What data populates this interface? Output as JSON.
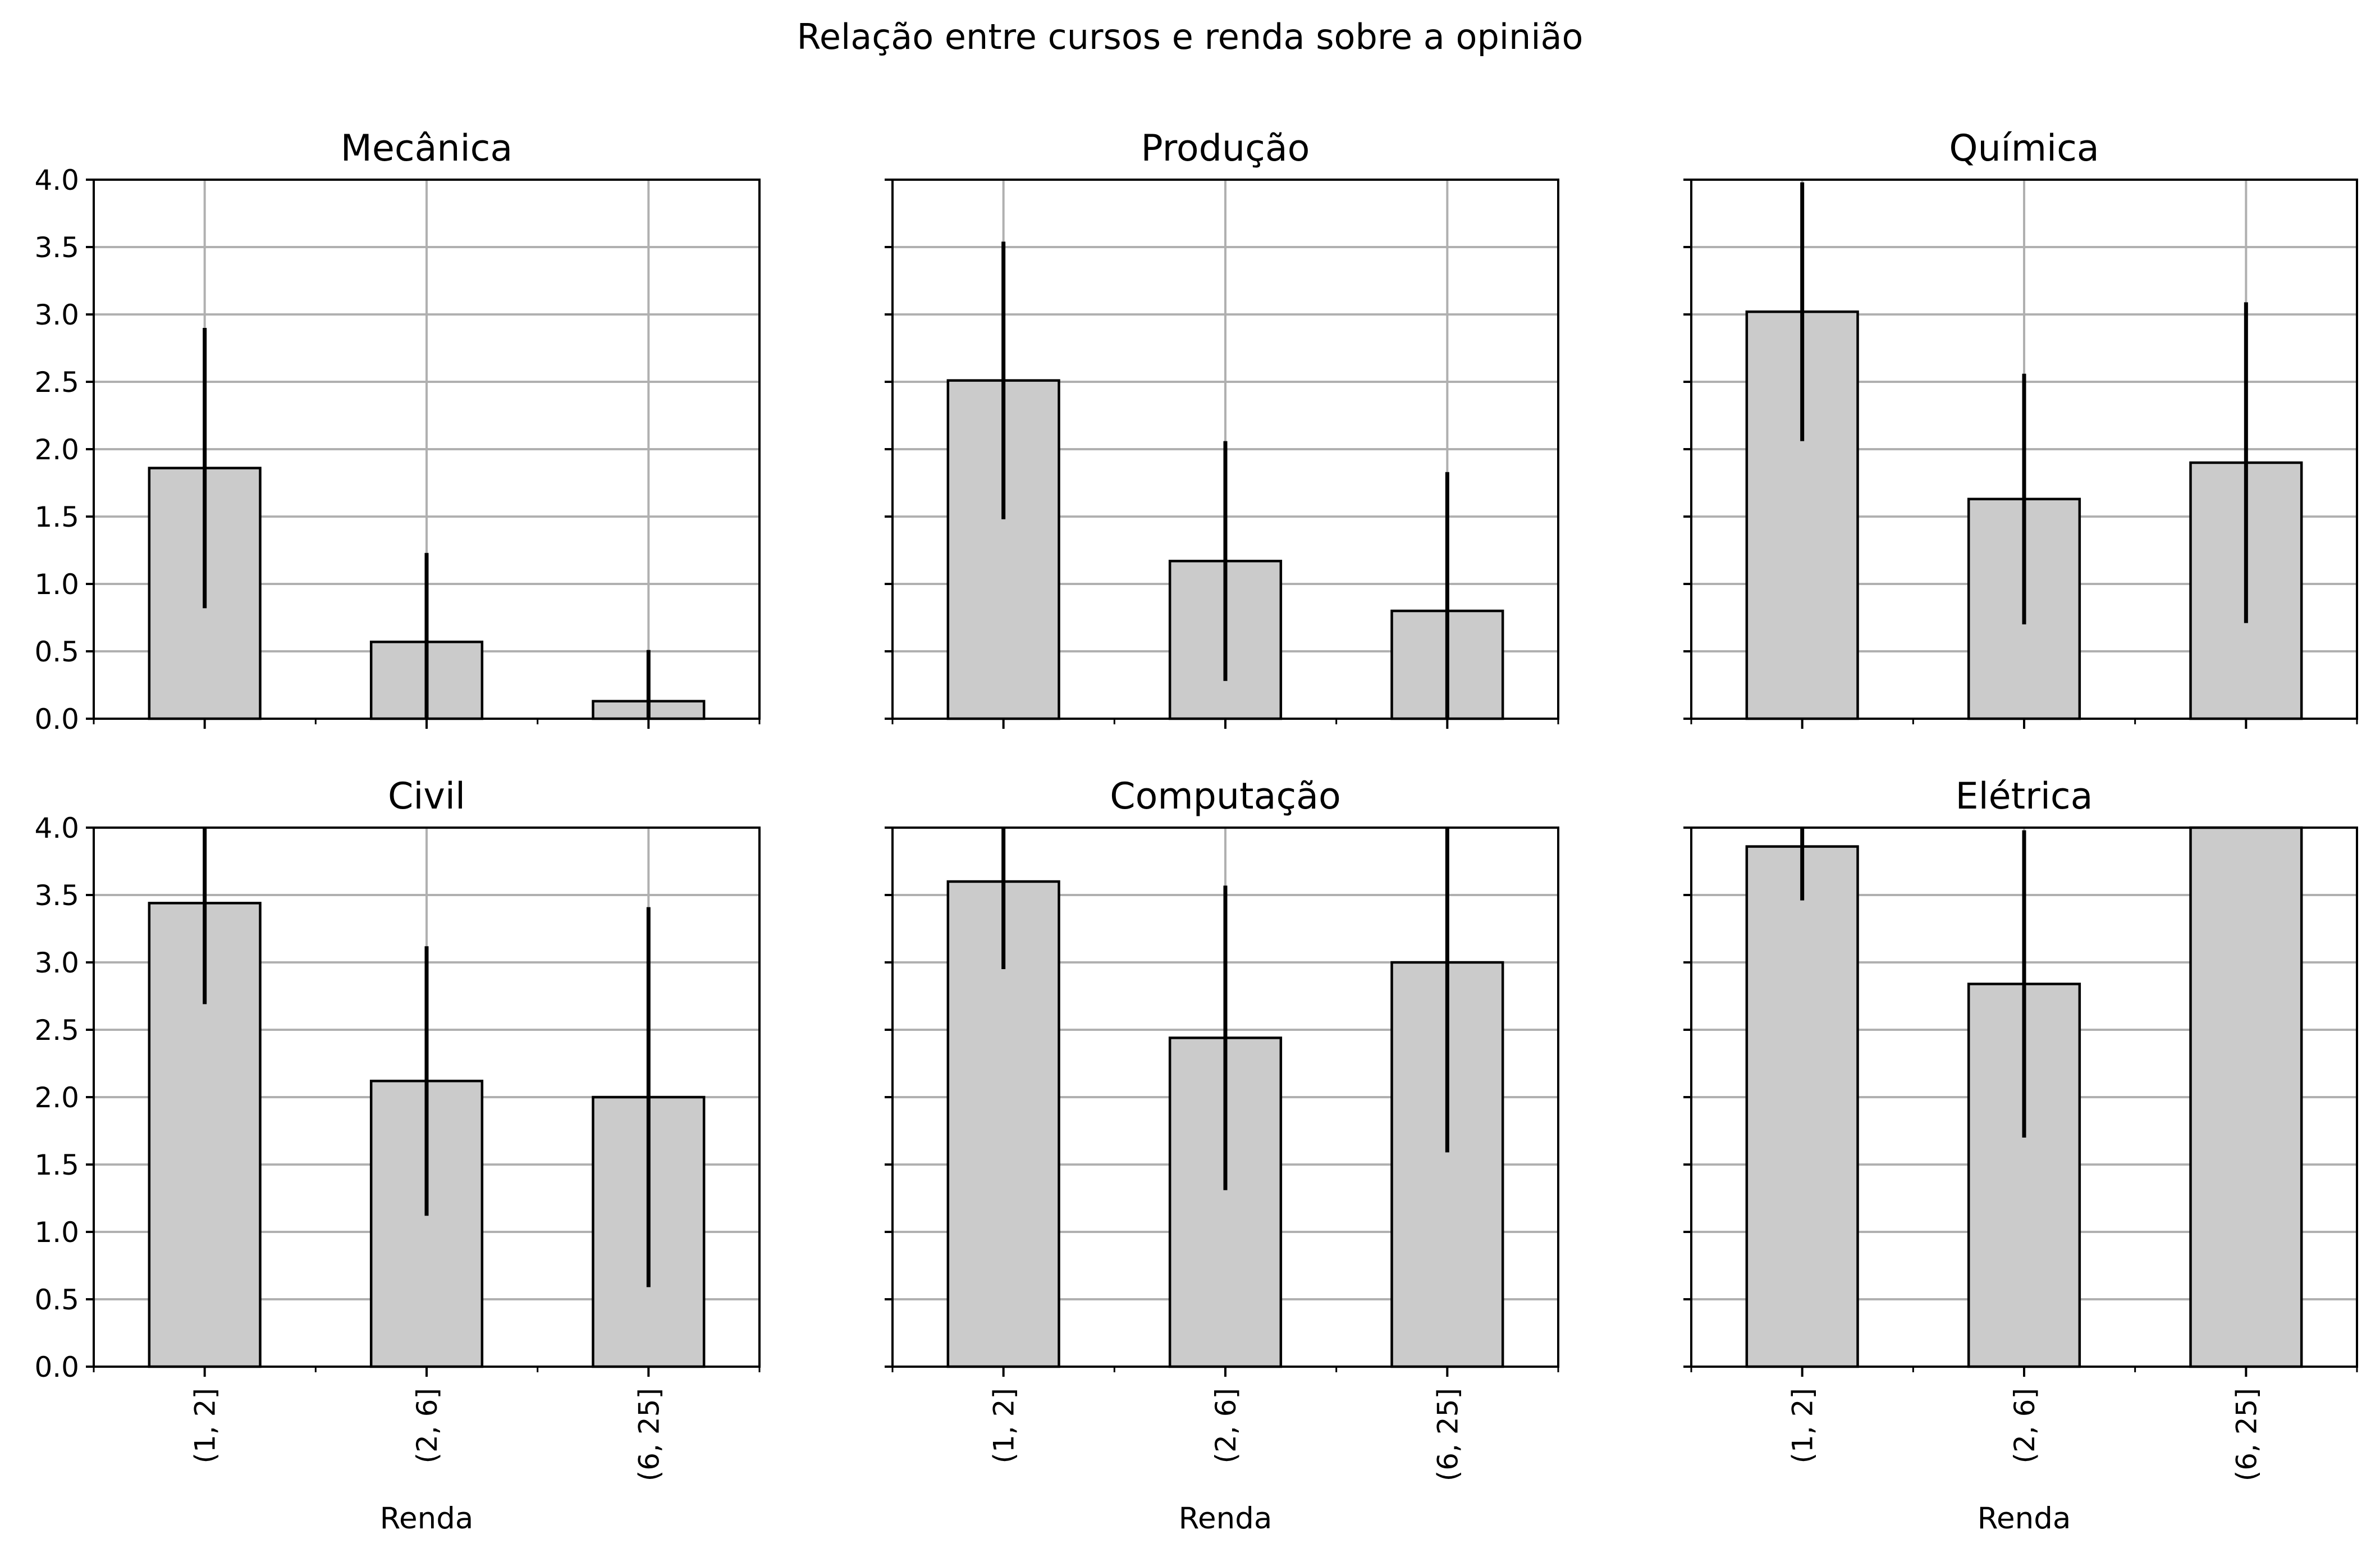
{
  "figure": {
    "title": "Relação entre cursos e renda sobre a opinião"
  },
  "chart_data": [
    {
      "type": "bar",
      "title": "Mecânica",
      "categories": [
        "(1, 2]",
        "(2, 6]",
        "(6, 25]"
      ],
      "values": [
        1.86,
        0.57,
        0.13
      ],
      "error": [
        1.04,
        0.66,
        0.38
      ],
      "xlabel": "",
      "ylabel": "",
      "ylim": [
        0,
        4.0
      ],
      "yticks": [
        "0.0",
        "0.5",
        "1.0",
        "1.5",
        "2.0",
        "2.5",
        "3.0",
        "3.5",
        "4.0"
      ],
      "grid": true
    },
    {
      "type": "bar",
      "title": "Produção",
      "categories": [
        "(1, 2]",
        "(2, 6]",
        "(6, 25]"
      ],
      "values": [
        2.51,
        1.17,
        0.8
      ],
      "error": [
        1.03,
        0.89,
        1.03
      ],
      "xlabel": "",
      "ylabel": "",
      "ylim": [
        0,
        4.0
      ],
      "grid": true
    },
    {
      "type": "bar",
      "title": "Química",
      "categories": [
        "(1, 2]",
        "(2, 6]",
        "(6, 25]"
      ],
      "values": [
        3.02,
        1.63,
        1.9
      ],
      "error": [
        0.96,
        0.93,
        1.19
      ],
      "xlabel": "",
      "ylabel": "",
      "ylim": [
        0,
        4.0
      ],
      "grid": true
    },
    {
      "type": "bar",
      "title": "Civil",
      "categories": [
        "(1, 2]",
        "(2, 6]",
        "(6, 25]"
      ],
      "values": [
        3.44,
        2.12,
        2.0
      ],
      "error": [
        0.75,
        1.0,
        1.41
      ],
      "xlabel": "Renda",
      "ylabel": "",
      "ylim": [
        0,
        4.0
      ],
      "yticks": [
        "0.0",
        "0.5",
        "1.0",
        "1.5",
        "2.0",
        "2.5",
        "3.0",
        "3.5",
        "4.0"
      ],
      "grid": true
    },
    {
      "type": "bar",
      "title": "Computação",
      "categories": [
        "(1, 2]",
        "(2, 6]",
        "(6, 25]"
      ],
      "values": [
        3.6,
        2.44,
        3.0
      ],
      "error": [
        0.65,
        1.13,
        1.41
      ],
      "xlabel": "Renda",
      "ylabel": "",
      "ylim": [
        0,
        4.0
      ],
      "grid": true
    },
    {
      "type": "bar",
      "title": "Elétrica",
      "categories": [
        "(1, 2]",
        "(2, 6]",
        "(6, 25]"
      ],
      "values": [
        3.86,
        2.84,
        4.0
      ],
      "error": [
        0.4,
        1.14,
        0.0
      ],
      "xlabel": "Renda",
      "ylabel": "",
      "ylim": [
        0,
        4.0
      ],
      "grid": true
    }
  ],
  "colors": {
    "bar_fill": "#cbcbcb",
    "bar_edge": "#000000",
    "grid": "#b0b0b0",
    "errorbar": "#000000",
    "axes": "#000000"
  }
}
